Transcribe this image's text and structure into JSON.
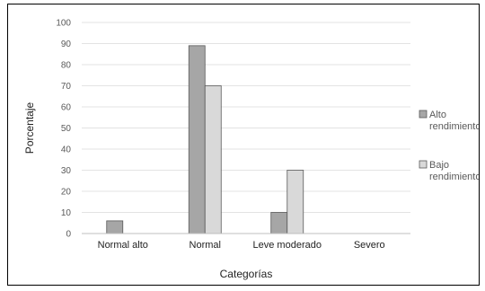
{
  "chart_data": {
    "type": "bar",
    "title": "",
    "xlabel": "Categorías",
    "ylabel": "Porcentaje",
    "ylim": [
      0,
      100
    ],
    "yticks": [
      0,
      10,
      20,
      30,
      40,
      50,
      60,
      70,
      80,
      90,
      100
    ],
    "grid": true,
    "legend_position": "right",
    "categories": [
      "Normal alto",
      "Normal",
      "Leve moderado",
      "Severo"
    ],
    "series": [
      {
        "name": "Alto rendimiento",
        "legend_lines": [
          "Alto",
          "rendimiento"
        ],
        "color": "#a6a6a6",
        "values": [
          6,
          89,
          10,
          0
        ]
      },
      {
        "name": "Bajo rendimiento",
        "legend_lines": [
          "Bajo",
          "rendimiento"
        ],
        "color": "#d9d9d9",
        "values": [
          0,
          70,
          30,
          0
        ]
      }
    ]
  }
}
